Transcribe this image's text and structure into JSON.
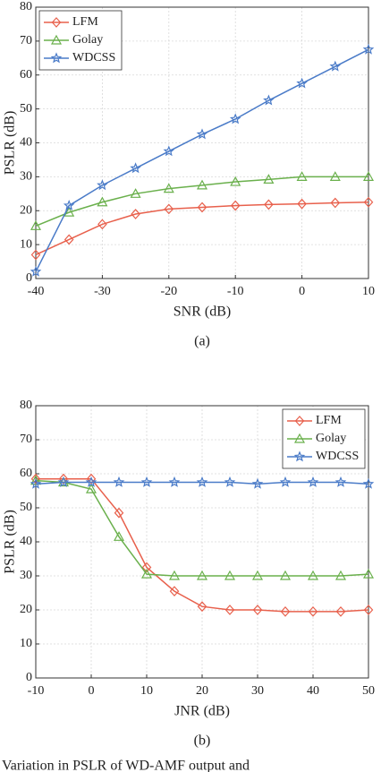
{
  "chart_data": [
    {
      "type": "line",
      "xlabel": "SNR (dB)",
      "ylabel": "PSLR (dB)",
      "caption": "(a)",
      "x": [
        -40,
        -35,
        -30,
        -25,
        -20,
        -15,
        -10,
        -5,
        0,
        5,
        10
      ],
      "xlim": [
        -40,
        10
      ],
      "xticks": [
        -40,
        -30,
        -20,
        -10,
        0,
        10
      ],
      "ylim": [
        0,
        80
      ],
      "yticks": [
        0,
        10,
        20,
        30,
        40,
        50,
        60,
        70,
        80
      ],
      "grid": true,
      "legend": "upper left",
      "series": [
        {
          "name": "LFM",
          "color": "#e8604c",
          "marker": "diamond",
          "values": [
            7,
            11.5,
            16,
            19,
            20.5,
            21,
            21.5,
            21.8,
            22,
            22.3,
            22.5
          ]
        },
        {
          "name": "Golay",
          "color": "#6ab04c",
          "marker": "triangle",
          "values": [
            15.5,
            19.5,
            22.5,
            25,
            26.5,
            27.5,
            28.5,
            29.2,
            30,
            30,
            30
          ]
        },
        {
          "name": "WDCSS",
          "color": "#4a7bc8",
          "marker": "star",
          "values": [
            2,
            21.5,
            27.5,
            32.5,
            37.5,
            42.5,
            47,
            52.5,
            57.5,
            62.5,
            67.5
          ]
        }
      ]
    },
    {
      "type": "line",
      "xlabel": "JNR (dB)",
      "ylabel": "PSLR (dB)",
      "caption": "(b)",
      "x": [
        -10,
        -5,
        0,
        5,
        10,
        15,
        20,
        25,
        30,
        35,
        40,
        45,
        50
      ],
      "xlim": [
        -10,
        50
      ],
      "xticks": [
        -10,
        0,
        10,
        20,
        30,
        40,
        50
      ],
      "ylim": [
        0,
        80
      ],
      "yticks": [
        0,
        10,
        20,
        30,
        40,
        50,
        60,
        70,
        80
      ],
      "grid": true,
      "legend": "upper right",
      "series": [
        {
          "name": "LFM",
          "color": "#e8604c",
          "marker": "diamond",
          "values": [
            58.5,
            58.5,
            58.5,
            48.5,
            32.5,
            25.5,
            21,
            20,
            20,
            19.5,
            19.5,
            19.5,
            20
          ]
        },
        {
          "name": "Golay",
          "color": "#6ab04c",
          "marker": "triangle",
          "values": [
            58,
            57.5,
            55.5,
            41.5,
            30.5,
            30,
            30,
            30,
            30,
            30,
            30,
            30,
            30.5
          ]
        },
        {
          "name": "WDCSS",
          "color": "#4a7bc8",
          "marker": "star",
          "values": [
            57,
            57.5,
            57.5,
            57.5,
            57.5,
            57.5,
            57.5,
            57.5,
            57,
            57.5,
            57.5,
            57.5,
            57
          ]
        }
      ]
    }
  ],
  "footer_text": "Variation in PSLR of WD-AMF output and"
}
